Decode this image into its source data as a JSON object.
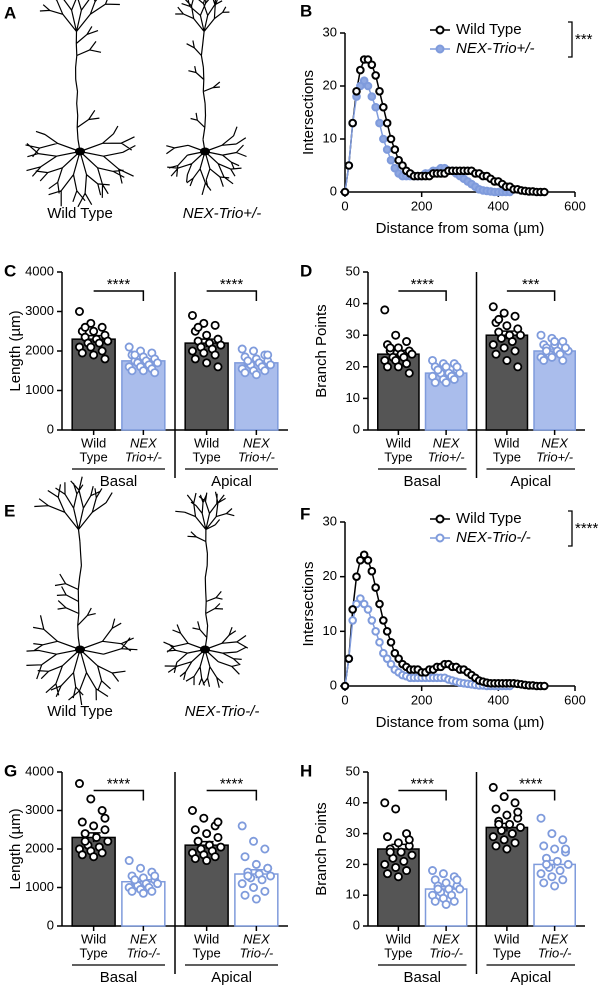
{
  "drawings": [
    {
      "label": "A",
      "captions": [
        "Wild Type",
        "NEX-Trio+/-"
      ]
    },
    {
      "label": "E",
      "captions": [
        "Wild Type",
        "NEX-Trio-/-"
      ]
    }
  ],
  "chart_data": [
    {
      "type": "line",
      "label": "B",
      "xlabel": "Distance from soma (µm)",
      "ylabel": "Intersections",
      "x": [
        0,
        10,
        20,
        30,
        40,
        50,
        60,
        70,
        80,
        90,
        100,
        110,
        120,
        130,
        140,
        150,
        160,
        170,
        180,
        190,
        200,
        210,
        220,
        230,
        240,
        250,
        260,
        270,
        280,
        290,
        300,
        310,
        320,
        330,
        340,
        350,
        360,
        370,
        380,
        390,
        400,
        410,
        420,
        430,
        440,
        450,
        460,
        470,
        480,
        490,
        500,
        510,
        520
      ],
      "series": [
        {
          "name": "Wild Type",
          "color": "#000000",
          "fill": "#ffffff",
          "values": [
            0,
            5,
            13,
            19,
            23,
            25,
            25,
            24,
            22,
            19,
            16,
            13,
            10,
            8,
            6,
            5,
            4,
            3.5,
            3,
            3,
            3,
            3,
            3,
            3.5,
            3.5,
            3.5,
            3.5,
            4,
            4,
            4,
            4,
            4,
            4,
            4,
            3.5,
            3.5,
            3,
            3,
            2.5,
            2,
            2,
            1.5,
            1,
            1,
            0.5,
            0.5,
            0.3,
            0.2,
            0.1,
            0.1,
            0,
            0,
            0
          ]
        },
        {
          "name": "NEX-Trio+/-",
          "color": "#7f9bdc",
          "fill": "#8fa8e2",
          "values": [
            0,
            5,
            13,
            18,
            20,
            21,
            20,
            18,
            16,
            13,
            10,
            8,
            6,
            4.5,
            3.5,
            3,
            3,
            3,
            3,
            3,
            3,
            3.5,
            3.5,
            4,
            4,
            4.5,
            4.5,
            4,
            4,
            3.5,
            3,
            2.5,
            2,
            1.5,
            1,
            0.5,
            0.3,
            0.2,
            0.1,
            0,
            0,
            0,
            0,
            0,
            null,
            null,
            null,
            null,
            null,
            null,
            null,
            null,
            null
          ]
        }
      ],
      "xlim": [
        0,
        600
      ],
      "ylim": [
        0,
        30
      ],
      "xticks": [
        0,
        200,
        400,
        600
      ],
      "yticks": [
        0,
        10,
        20,
        30
      ],
      "significance": "***"
    },
    {
      "type": "bar",
      "label": "C",
      "ylabel": "Length (µm)",
      "categories": [
        [
          "Wild",
          "Type"
        ],
        [
          "NEX",
          "Trio+/-"
        ],
        [
          "Wild",
          "Type"
        ],
        [
          "NEX",
          "Trio+/-"
        ]
      ],
      "groups": [
        "Basal",
        "Apical"
      ],
      "values": [
        2300,
        1750,
        2200,
        1700
      ],
      "errors": [
        90,
        50,
        100,
        50
      ],
      "points": [
        [
          3000,
          2700,
          2600,
          2500,
          2500,
          2400,
          2350,
          2300,
          2250,
          2200,
          2200,
          2100,
          2100,
          2000,
          1950,
          1900,
          1800,
          2600
        ],
        [
          2100,
          2000,
          1950,
          1900,
          1850,
          1800,
          1750,
          1750,
          1700,
          1700,
          1650,
          1600,
          1600,
          1550,
          1500,
          1500,
          1450,
          1900
        ],
        [
          2900,
          2700,
          2650,
          2500,
          2400,
          2300,
          2250,
          2200,
          2150,
          2100,
          2050,
          2000,
          1950,
          1900,
          1800,
          1700,
          1600,
          2600
        ],
        [
          2050,
          2000,
          1900,
          1850,
          1800,
          1750,
          1700,
          1700,
          1650,
          1650,
          1600,
          1550,
          1500,
          1500,
          1450,
          1400,
          1900,
          1750
        ]
      ],
      "bar_fills": [
        "#555555",
        "#aabdec",
        "#555555",
        "#aabdec"
      ],
      "bar_edges": [
        "#000000",
        "#7f9bdc",
        "#000000",
        "#7f9bdc"
      ],
      "ylim": [
        0,
        4000
      ],
      "yticks": [
        0,
        1000,
        2000,
        3000,
        4000
      ],
      "significance": [
        "****",
        "****"
      ]
    },
    {
      "type": "bar",
      "label": "D",
      "ylabel": "Branch Points",
      "categories": [
        [
          "Wild",
          "Type"
        ],
        [
          "NEX",
          "Trio+/-"
        ],
        [
          "Wild",
          "Type"
        ],
        [
          "NEX",
          "Trio+/-"
        ]
      ],
      "groups": [
        "Basal",
        "Apical"
      ],
      "values": [
        24,
        18,
        30,
        25
      ],
      "errors": [
        1.2,
        0.5,
        1.3,
        0.6
      ],
      "points": [
        [
          38,
          30,
          28,
          27,
          26,
          25,
          25,
          24,
          24,
          23,
          23,
          22,
          22,
          21,
          20,
          20,
          18,
          26
        ],
        [
          22,
          21,
          21,
          20,
          20,
          19,
          19,
          18,
          18,
          18,
          17,
          17,
          16,
          16,
          15,
          15,
          20,
          19
        ],
        [
          39,
          37,
          36,
          34,
          33,
          32,
          31,
          30,
          30,
          29,
          28,
          27,
          26,
          25,
          24,
          22,
          20,
          35
        ],
        [
          30,
          29,
          28,
          27,
          27,
          26,
          26,
          25,
          25,
          24,
          24,
          23,
          23,
          22,
          22,
          28,
          26,
          25
        ]
      ],
      "bar_fills": [
        "#555555",
        "#aabdec",
        "#555555",
        "#aabdec"
      ],
      "bar_edges": [
        "#000000",
        "#7f9bdc",
        "#000000",
        "#7f9bdc"
      ],
      "ylim": [
        0,
        50
      ],
      "yticks": [
        0,
        10,
        20,
        30,
        40,
        50
      ],
      "significance": [
        "****",
        "***"
      ]
    },
    {
      "type": "line",
      "label": "F",
      "xlabel": "Distance from soma (µm)",
      "ylabel": "Intersections",
      "x": [
        0,
        10,
        20,
        30,
        40,
        50,
        60,
        70,
        80,
        90,
        100,
        110,
        120,
        130,
        140,
        150,
        160,
        170,
        180,
        190,
        200,
        210,
        220,
        230,
        240,
        250,
        260,
        270,
        280,
        290,
        300,
        310,
        320,
        330,
        340,
        350,
        360,
        370,
        380,
        390,
        400,
        410,
        420,
        430,
        440,
        450,
        460,
        470,
        480,
        490,
        500,
        510,
        520
      ],
      "series": [
        {
          "name": "Wild Type",
          "color": "#000000",
          "fill": "#ffffff",
          "values": [
            0,
            5,
            14,
            20,
            23,
            24,
            23,
            21,
            18,
            15,
            12,
            10,
            8,
            6,
            5,
            4,
            3.5,
            3,
            3,
            3,
            2.5,
            2.5,
            3,
            3,
            3.5,
            3.5,
            4,
            4,
            3.5,
            3.5,
            3,
            3,
            2.5,
            2,
            1.5,
            1,
            0.8,
            0.6,
            0.5,
            0.5,
            0.5,
            0.5,
            0.5,
            0.5,
            0.5,
            0.4,
            0.3,
            0.2,
            0.1,
            0.1,
            0,
            0,
            0
          ]
        },
        {
          "name": "NEX-Trio-/-",
          "color": "#7f9bdc",
          "fill": "#ffffff",
          "values": [
            0,
            5,
            12,
            15,
            16,
            15,
            14,
            12,
            10,
            8,
            6,
            5,
            4,
            3,
            2.5,
            2,
            1.8,
            1.5,
            1.5,
            1.5,
            1.5,
            1.5,
            1.5,
            1.5,
            1.5,
            1.5,
            1.5,
            1.2,
            1,
            0.8,
            0.6,
            0.5,
            0.4,
            0.3,
            0.2,
            0.1,
            0.1,
            0,
            0,
            0,
            0,
            0,
            0,
            0,
            null,
            null,
            null,
            null,
            null,
            null,
            null,
            null,
            null
          ]
        }
      ],
      "xlim": [
        0,
        600
      ],
      "ylim": [
        0,
        30
      ],
      "xticks": [
        0,
        200,
        400,
        600
      ],
      "yticks": [
        0,
        10,
        20,
        30
      ],
      "significance": "****"
    },
    {
      "type": "bar",
      "label": "G",
      "ylabel": "Length (µm)",
      "categories": [
        [
          "Wild",
          "Type"
        ],
        [
          "NEX",
          "Trio-/-"
        ],
        [
          "Wild",
          "Type"
        ],
        [
          "NEX",
          "Trio-/-"
        ]
      ],
      "groups": [
        "Basal",
        "Apical"
      ],
      "values": [
        2300,
        1150,
        2100,
        1350
      ],
      "errors": [
        120,
        50,
        90,
        110
      ],
      "points": [
        [
          3700,
          3300,
          3000,
          2700,
          2600,
          2500,
          2400,
          2300,
          2200,
          2100,
          2050,
          2000,
          1950,
          1900,
          1850,
          1800,
          2800,
          2200
        ],
        [
          1700,
          1500,
          1400,
          1300,
          1250,
          1200,
          1150,
          1100,
          1100,
          1050,
          1000,
          1000,
          950,
          900,
          900,
          850,
          1300,
          1200
        ],
        [
          3000,
          2800,
          2600,
          2500,
          2400,
          2300,
          2200,
          2100,
          2050,
          2000,
          1950,
          1900,
          1850,
          1800,
          1750,
          1700,
          2700,
          2200
        ],
        [
          2600,
          2200,
          2000,
          1800,
          1600,
          1500,
          1400,
          1350,
          1300,
          1250,
          1200,
          1100,
          1000,
          900,
          800,
          700,
          1500,
          1300
        ]
      ],
      "bar_fills": [
        "#555555",
        "#ffffff",
        "#555555",
        "#ffffff"
      ],
      "bar_edges": [
        "#000000",
        "#7f9bdc",
        "#000000",
        "#7f9bdc"
      ],
      "ylim": [
        0,
        4000
      ],
      "yticks": [
        0,
        1000,
        2000,
        3000,
        4000
      ],
      "significance": [
        "****",
        "****"
      ]
    },
    {
      "type": "bar",
      "label": "H",
      "ylabel": "Branch Points",
      "categories": [
        [
          "Wild",
          "Type"
        ],
        [
          "NEX",
          "Trio-/-"
        ],
        [
          "Wild",
          "Type"
        ],
        [
          "NEX",
          "Trio-/-"
        ]
      ],
      "groups": [
        "Basal",
        "Apical"
      ],
      "values": [
        25,
        12,
        32,
        20
      ],
      "errors": [
        1.5,
        0.8,
        1.3,
        1.3
      ],
      "points": [
        [
          40,
          38,
          30,
          29,
          27,
          26,
          25,
          24,
          23,
          22,
          21,
          20,
          19,
          18,
          17,
          16,
          28,
          24
        ],
        [
          18,
          17,
          16,
          15,
          14,
          13,
          13,
          12,
          12,
          11,
          10,
          10,
          9,
          8,
          8,
          7,
          15,
          12
        ],
        [
          45,
          42,
          40,
          38,
          36,
          35,
          34,
          33,
          32,
          31,
          30,
          29,
          28,
          27,
          26,
          25,
          37,
          33
        ],
        [
          35,
          30,
          28,
          26,
          25,
          24,
          22,
          21,
          20,
          19,
          18,
          17,
          16,
          15,
          14,
          13,
          25,
          20
        ]
      ],
      "bar_fills": [
        "#555555",
        "#ffffff",
        "#555555",
        "#ffffff"
      ],
      "bar_edges": [
        "#000000",
        "#7f9bdc",
        "#000000",
        "#7f9bdc"
      ],
      "ylim": [
        0,
        50
      ],
      "yticks": [
        0,
        10,
        20,
        30,
        40,
        50
      ],
      "significance": [
        "****",
        "****"
      ]
    }
  ]
}
